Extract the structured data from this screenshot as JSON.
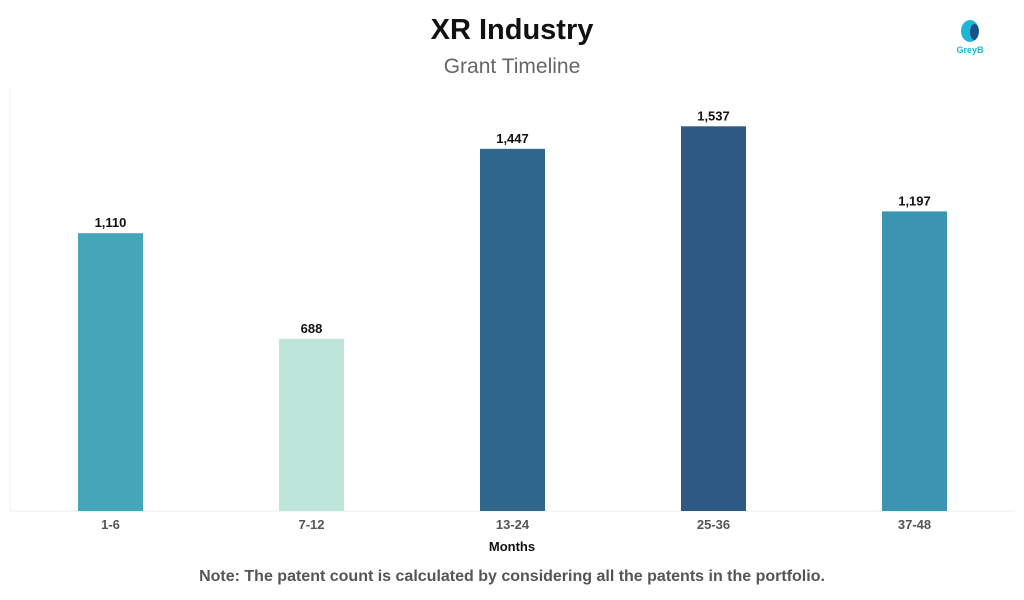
{
  "logo": {
    "text": "GreyB"
  },
  "note": "Note: The patent count is calculated by considering all the patents in the portfolio.",
  "chart_data": {
    "type": "bar",
    "title": "XR Industry",
    "subtitle": "Grant Timeline",
    "xlabel": "Months",
    "ylabel": "",
    "categories": [
      "1-6",
      "7-12",
      "13-24",
      "25-36",
      "37-48"
    ],
    "values": [
      1110,
      688,
      1447,
      1537,
      1197
    ],
    "value_labels": [
      "1,110",
      "688",
      "1,447",
      "1,537",
      "1,197"
    ],
    "colors": [
      "#47a5b9",
      "#bde5da",
      "#2f668c",
      "#2d5984",
      "#3b94b1"
    ],
    "ylim": [
      0,
      1690
    ],
    "grid": false
  }
}
